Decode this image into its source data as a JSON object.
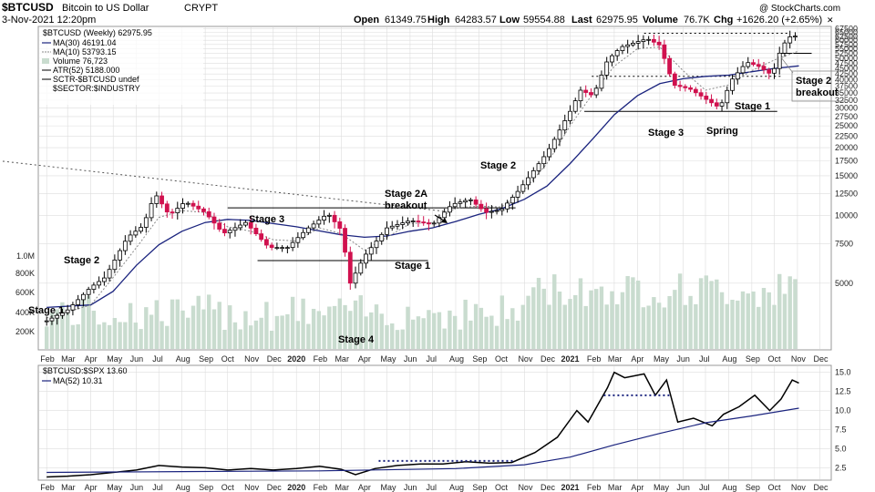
{
  "header": {
    "symbol": "$BTCUSD",
    "name": "Bitcoin to US Dollar",
    "exchange": "CRYPT",
    "date": "3-Nov-2021 12:20pm",
    "open_label": "Open",
    "open": "61349.75",
    "high_label": "High",
    "high": "64283.57",
    "low_label": "Low",
    "low": "59554.88",
    "last_label": "Last",
    "last": "62975.95",
    "volume_label": "Volume",
    "volume": "76.7K",
    "chg_label": "Chg",
    "chg": "+1626.20 (+2.65%)",
    "watermark": "@ StockCharts.com"
  },
  "legend": [
    {
      "text": "$BTCUSD (Weekly) 62975.95",
      "color": "#000000"
    },
    {
      "text": "MA(30) 46191.04",
      "color": "#1a237e"
    },
    {
      "text": "MA(10) 53793.15",
      "color": "#888888"
    },
    {
      "text": "Volume 76,723",
      "color": "#7aa890"
    },
    {
      "text": "ATR(52) 5188.000",
      "color": "#000000"
    },
    {
      "text": "SCTR-$BTCUSD undef",
      "color": "#000000"
    },
    {
      "text": "$SECTOR:$INDUSTRY",
      "color": "#000000"
    }
  ],
  "legend2": [
    {
      "text": "$BTCUSD:$SPX 13.60",
      "color": "#000000"
    },
    {
      "text": "MA(52) 10.31",
      "color": "#1a237e"
    }
  ],
  "annotations": [
    {
      "text": "Stage 1"
    },
    {
      "text": "Stage 2"
    },
    {
      "text": "Stage 3"
    },
    {
      "text": "Stage 2A"
    },
    {
      "text": "breakout"
    },
    {
      "text": "Stage 1"
    },
    {
      "text": "Stage 4"
    },
    {
      "text": "Stage 2"
    },
    {
      "text": "Stage 3"
    },
    {
      "text": "Spring"
    },
    {
      "text": "Stage 1"
    },
    {
      "text": "Stage 2"
    },
    {
      "text": "breakout"
    }
  ],
  "colors": {
    "up": "#000000",
    "down": "#d0114e",
    "ma30": "#1a237e",
    "ma10": "#888888",
    "volume": "#c9dccf",
    "grid": "#dddddd"
  },
  "chart_data": [
    {
      "type": "candlestick",
      "title": "$BTCUSD (Weekly)",
      "scale": "log",
      "y_ticks": [
        "67500",
        "65000",
        "62500",
        "60000",
        "57500",
        "55000",
        "52500",
        "50000",
        "47500",
        "45000",
        "42500",
        "40000",
        "37500",
        "35000",
        "32500",
        "30000",
        "27500",
        "25000",
        "22500",
        "20000",
        "17500",
        "15000",
        "12500",
        "10000",
        "7500",
        "5000"
      ],
      "x_ticks": [
        "Feb",
        "Mar",
        "Apr",
        "May",
        "Jun",
        "Jul",
        "Aug",
        "Sep",
        "Oct",
        "Nov",
        "Dec",
        "2020",
        "Feb",
        "Mar",
        "Apr",
        "May",
        "Jun",
        "Jul",
        "Aug",
        "Sep",
        "Oct",
        "Nov",
        "Dec",
        "2021",
        "Feb",
        "Mar",
        "Apr",
        "May",
        "Jun",
        "Jul",
        "Aug",
        "Sep",
        "Oct",
        "Nov",
        "Dec"
      ],
      "volume_ticks": [
        "1.0M",
        "800K",
        "600K",
        "400K",
        "200K"
      ],
      "close_path": [
        [
          "2019-02-01",
          3400
        ],
        [
          "2019-03-01",
          3800
        ],
        [
          "2019-04-01",
          4800
        ],
        [
          "2019-04-20",
          5300
        ],
        [
          "2019-05-20",
          8000
        ],
        [
          "2019-06-10",
          9000
        ],
        [
          "2019-06-26",
          12500
        ],
        [
          "2019-07-15",
          10000
        ],
        [
          "2019-08-05",
          11500
        ],
        [
          "2019-09-01",
          10300
        ],
        [
          "2019-09-25",
          8300
        ],
        [
          "2019-10-25",
          9300
        ],
        [
          "2019-11-25",
          7200
        ],
        [
          "2019-12-20",
          7200
        ],
        [
          "2020-01-15",
          8700
        ],
        [
          "2020-02-12",
          10200
        ],
        [
          "2020-03-01",
          8600
        ],
        [
          "2020-03-13",
          5000
        ],
        [
          "2020-04-01",
          6600
        ],
        [
          "2020-05-01",
          8800
        ],
        [
          "2020-06-01",
          9500
        ],
        [
          "2020-07-01",
          9100
        ],
        [
          "2020-07-27",
          11200
        ],
        [
          "2020-08-20",
          11800
        ],
        [
          "2020-09-10",
          10300
        ],
        [
          "2020-10-01",
          10600
        ],
        [
          "2020-10-25",
          13000
        ],
        [
          "2020-12-01",
          19000
        ],
        [
          "2021-01-01",
          29000
        ],
        [
          "2021-01-15",
          36000
        ],
        [
          "2021-02-01",
          34000
        ],
        [
          "2021-02-20",
          49000
        ],
        [
          "2021-03-10",
          56000
        ],
        [
          "2021-04-14",
          61000
        ],
        [
          "2021-05-01",
          57000
        ],
        [
          "2021-05-19",
          38000
        ],
        [
          "2021-06-10",
          36500
        ],
        [
          "2021-07-20",
          30000
        ],
        [
          "2021-08-05",
          40000
        ],
        [
          "2021-08-25",
          48000
        ],
        [
          "2021-09-10",
          46000
        ],
        [
          "2021-09-28",
          42000
        ],
        [
          "2021-10-10",
          55000
        ],
        [
          "2021-10-20",
          62000
        ],
        [
          "2021-11-03",
          62975.95
        ]
      ],
      "ma30_path": [
        [
          "2019-02-01",
          3900
        ],
        [
          "2019-04-01",
          4000
        ],
        [
          "2019-05-01",
          4600
        ],
        [
          "2019-06-01",
          6000
        ],
        [
          "2019-07-01",
          7400
        ],
        [
          "2019-08-01",
          8500
        ],
        [
          "2019-09-01",
          9300
        ],
        [
          "2019-10-01",
          9600
        ],
        [
          "2019-11-01",
          9500
        ],
        [
          "2019-12-01",
          9200
        ],
        [
          "2020-01-01",
          8900
        ],
        [
          "2020-03-01",
          8200
        ],
        [
          "2020-04-01",
          8000
        ],
        [
          "2020-05-01",
          8100
        ],
        [
          "2020-06-01",
          8500
        ],
        [
          "2020-07-01",
          8800
        ],
        [
          "2020-08-01",
          9400
        ],
        [
          "2020-09-01",
          10100
        ],
        [
          "2020-10-01",
          10700
        ],
        [
          "2020-11-01",
          11800
        ],
        [
          "2020-12-01",
          13500
        ],
        [
          "2021-01-01",
          17000
        ],
        [
          "2021-02-01",
          22000
        ],
        [
          "2021-03-01",
          28000
        ],
        [
          "2021-04-01",
          34000
        ],
        [
          "2021-05-01",
          38500
        ],
        [
          "2021-06-01",
          40500
        ],
        [
          "2021-07-01",
          41500
        ],
        [
          "2021-08-01",
          42000
        ],
        [
          "2021-09-01",
          43500
        ],
        [
          "2021-10-01",
          45000
        ],
        [
          "2021-11-03",
          46191.04
        ]
      ],
      "ma10_path": [
        [
          "2019-02-01",
          3500
        ],
        [
          "2019-04-01",
          4000
        ],
        [
          "2019-05-01",
          5300
        ],
        [
          "2019-06-01",
          7200
        ],
        [
          "2019-07-01",
          9800
        ],
        [
          "2019-08-01",
          10500
        ],
        [
          "2019-09-01",
          10300
        ],
        [
          "2019-10-01",
          8900
        ],
        [
          "2019-11-01",
          8500
        ],
        [
          "2019-12-01",
          7800
        ],
        [
          "2020-01-01",
          7700
        ],
        [
          "2020-02-01",
          8800
        ],
        [
          "2020-03-01",
          8300
        ],
        [
          "2020-04-01",
          7000
        ],
        [
          "2020-05-01",
          8000
        ],
        [
          "2020-06-01",
          9200
        ],
        [
          "2020-07-01",
          9300
        ],
        [
          "2020-08-01",
          10800
        ],
        [
          "2020-09-01",
          11000
        ],
        [
          "2020-10-01",
          10900
        ],
        [
          "2020-11-01",
          13000
        ],
        [
          "2020-12-01",
          17000
        ],
        [
          "2021-01-01",
          25000
        ],
        [
          "2021-02-01",
          35000
        ],
        [
          "2021-03-01",
          46000
        ],
        [
          "2021-04-01",
          55000
        ],
        [
          "2021-05-01",
          56000
        ],
        [
          "2021-06-01",
          44000
        ],
        [
          "2021-07-01",
          36000
        ],
        [
          "2021-08-01",
          38000
        ],
        [
          "2021-09-01",
          44000
        ],
        [
          "2021-10-01",
          49000
        ],
        [
          "2021-11-03",
          53793.15
        ]
      ],
      "levels": [
        {
          "from": "2019-10-01",
          "to": "2020-10-20",
          "y": 10800
        },
        {
          "from": "2019-11-10",
          "to": "2020-06-25",
          "y": 6300
        },
        {
          "from": "2021-01-20",
          "to": "2021-10-05",
          "y": 29000
        },
        {
          "from": "2021-04-10",
          "to": "2021-10-20",
          "y": 64500
        },
        {
          "from": "2021-01-30",
          "to": "2021-10-10",
          "y": 41500
        },
        {
          "from": "2021-10-10",
          "to": "2021-11-20",
          "y": 52500
        }
      ],
      "trendline": {
        "from": [
          "2018-12-01",
          17500
        ],
        "to": [
          "2020-07-20",
          10400
        ]
      }
    },
    {
      "type": "line",
      "title": "$BTCUSD:$SPX",
      "y_ticks": [
        15.0,
        12.5,
        10.0,
        7.5,
        5.0,
        2.5
      ],
      "ylim": [
        1.0,
        15.8
      ],
      "x_ticks": [
        "Feb",
        "Mar",
        "Apr",
        "May",
        "Jun",
        "Jul",
        "Aug",
        "Sep",
        "Oct",
        "Nov",
        "Dec",
        "2020",
        "Feb",
        "Mar",
        "Apr",
        "May",
        "Jun",
        "Jul",
        "Aug",
        "Sep",
        "Oct",
        "Nov",
        "Dec",
        "2021",
        "Feb",
        "Mar",
        "Apr",
        "May",
        "Jun",
        "Jul",
        "Aug",
        "Sep",
        "Oct",
        "Nov",
        "Dec"
      ],
      "series": [
        {
          "name": "$BTCUSD:$SPX",
          "x": [
            "2019-02-01",
            "2019-03-01",
            "2019-04-01",
            "2019-05-01",
            "2019-06-01",
            "2019-07-01",
            "2019-08-01",
            "2019-09-01",
            "2019-10-01",
            "2019-11-01",
            "2019-12-01",
            "2020-01-01",
            "2020-02-01",
            "2020-03-01",
            "2020-03-20",
            "2020-04-15",
            "2020-05-15",
            "2020-06-15",
            "2020-07-15",
            "2020-08-15",
            "2020-09-15",
            "2020-10-15",
            "2020-11-15",
            "2020-12-15",
            "2021-01-10",
            "2021-01-25",
            "2021-02-20",
            "2021-03-01",
            "2021-03-15",
            "2021-04-10",
            "2021-04-25",
            "2021-05-10",
            "2021-05-25",
            "2021-06-15",
            "2021-07-10",
            "2021-07-25",
            "2021-08-15",
            "2021-09-05",
            "2021-09-25",
            "2021-10-10",
            "2021-10-25",
            "2021-11-03"
          ],
          "values": [
            1.3,
            1.4,
            1.6,
            1.9,
            2.2,
            2.8,
            2.6,
            2.5,
            2.2,
            2.4,
            2.2,
            2.4,
            2.7,
            2.3,
            1.6,
            2.4,
            2.8,
            3.0,
            3.0,
            3.3,
            3.1,
            3.2,
            4.5,
            6.5,
            10.0,
            8.5,
            13.0,
            15.0,
            14.3,
            14.8,
            12.0,
            14.0,
            8.5,
            9.0,
            8.0,
            9.5,
            10.5,
            12.0,
            10.0,
            11.5,
            14.0,
            13.6
          ]
        },
        {
          "name": "MA(52)",
          "x": [
            "2019-02-01",
            "2019-08-01",
            "2020-02-01",
            "2020-08-01",
            "2020-11-01",
            "2021-01-01",
            "2021-03-01",
            "2021-05-01",
            "2021-07-01",
            "2021-09-01",
            "2021-11-03"
          ],
          "values": [
            1.9,
            2.0,
            2.1,
            2.4,
            2.9,
            3.9,
            5.5,
            7.0,
            8.4,
            9.3,
            10.31
          ]
        }
      ],
      "dotted_levels": [
        {
          "from": "2020-04-20",
          "to": "2020-10-20",
          "y": 3.4
        },
        {
          "from": "2021-02-15",
          "to": "2021-05-15",
          "y": 12.0
        }
      ]
    }
  ]
}
